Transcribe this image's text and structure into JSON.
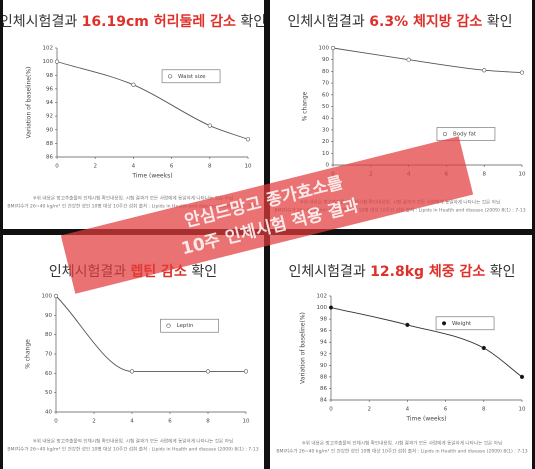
{
  "chart_data": [
    {
      "type": "line",
      "title": "인체시험결과",
      "title_highlight": "16.19cm 허리둘레 감소",
      "title_suffix": "확인",
      "x_label": "Time (weeks)",
      "y_label": "Variation of baseline(%)",
      "x": [
        0,
        4,
        8,
        10
      ],
      "series": [
        {
          "name": "Waist size",
          "color": "#555555",
          "marker_fill": "#ffffff",
          "values": [
            100,
            96.6,
            90.6,
            88.6
          ]
        }
      ],
      "xlim": [
        0,
        10
      ],
      "xticks": [
        0,
        2,
        4,
        6,
        8,
        10
      ],
      "ylim": [
        86,
        102
      ],
      "yticks": [
        86,
        88,
        90,
        92,
        94,
        96,
        98,
        100,
        102
      ],
      "legend": "upper right",
      "note": [
        "※위 내용은 망고추출물의 인체시험 확인내용임. 시험 결과가 모든 사람에게 동일하게 나타나는 것은 아님",
        "BMI지수가 26~40 kg/m² 인 건강한 성인 10명 대상 10주간 섭취  출처 : Lipids in Health and disease (2009) 8(1) : 7-13"
      ]
    },
    {
      "type": "line",
      "title": "인체시험결과",
      "title_highlight": "6.3% 체지방 감소",
      "title_suffix": "확인",
      "y_label": "% change",
      "x": [
        0,
        4,
        8,
        10
      ],
      "series": [
        {
          "name": "Body fat",
          "color": "#555555",
          "marker_fill": "#ffffff",
          "values": [
            100,
            90,
            81,
            79
          ]
        }
      ],
      "xlim": [
        0,
        10
      ],
      "xticks": [
        0,
        2,
        4,
        6,
        8,
        10
      ],
      "ylim": [
        0,
        100
      ],
      "yticks": [
        0,
        10,
        20,
        30,
        40,
        50,
        60,
        70,
        80,
        90,
        100
      ],
      "legend": "lower right",
      "note": [
        "※위 내용은 망고추출물의 인체시험 확인내용임. 시험 결과가 모든 사람에게 동일하게 나타나는 것은 아님",
        "BMI지수가 26~40 kg/m² 인 건강한 성인 10명 대상 10주간 섭취  출처 : Lipids in Health and disease (2009) 8(1) : 7-13"
      ]
    },
    {
      "type": "line",
      "title": "인체시험결과",
      "title_highlight": "렙틴 감소",
      "title_suffix": "확인",
      "y_label": "% change",
      "x": [
        0,
        4,
        8,
        10
      ],
      "series": [
        {
          "name": "Leptin",
          "color": "#555555",
          "marker_fill": "#ffffff",
          "values": [
            100,
            61,
            61,
            61
          ]
        }
      ],
      "xlim": [
        0,
        10
      ],
      "xticks": [
        0,
        2,
        4,
        6,
        8,
        10
      ],
      "ylim": [
        40,
        100
      ],
      "yticks": [
        40,
        50,
        60,
        70,
        80,
        90,
        100
      ],
      "legend": "upper right",
      "note": [
        "※위 내용은 망고추출물의 인체시험 확인내용임. 시험 결과가 모든 사람에게 동일하게 나타나는 것은 아님",
        "BMI지수가 26~40 kg/m² 인 건강한 성인 10명 대상 10주간 섭취  출처 : Lipids in Health and disease (2009) 8(1) : 7-13"
      ]
    },
    {
      "type": "line",
      "title": "인체시험결과",
      "title_highlight": "12.8kg 체중 감소",
      "title_suffix": "확인",
      "x_label": "Time (weeks)",
      "y_label": "Variation of baseline(%)",
      "x": [
        0,
        4,
        8,
        10
      ],
      "series": [
        {
          "name": "Weight",
          "color": "#333333",
          "marker_fill": "#111111",
          "values": [
            100,
            97,
            93,
            88
          ]
        }
      ],
      "xlim": [
        0,
        10
      ],
      "xticks": [
        0,
        2,
        4,
        6,
        8,
        10
      ],
      "ylim": [
        84,
        102
      ],
      "yticks": [
        84,
        86,
        88,
        90,
        92,
        94,
        96,
        98,
        100,
        102
      ],
      "legend": "upper right",
      "note": [
        "※위 내용은 망고추출물의 인체시험 확인내용임. 시험 결과가 모든 사람에게 동일하게 나타나는 것은 아님",
        "BMI지수가 26~40 kg/m² 인 건강한 성인 10명 대상 10주간 섭취  출처 : Lipids in Health and disease (2009) 8(1) : 7-13"
      ]
    }
  ],
  "watermark": [
    "안심드망고 종가효소를",
    "10주 인체시험 적용 결과"
  ]
}
